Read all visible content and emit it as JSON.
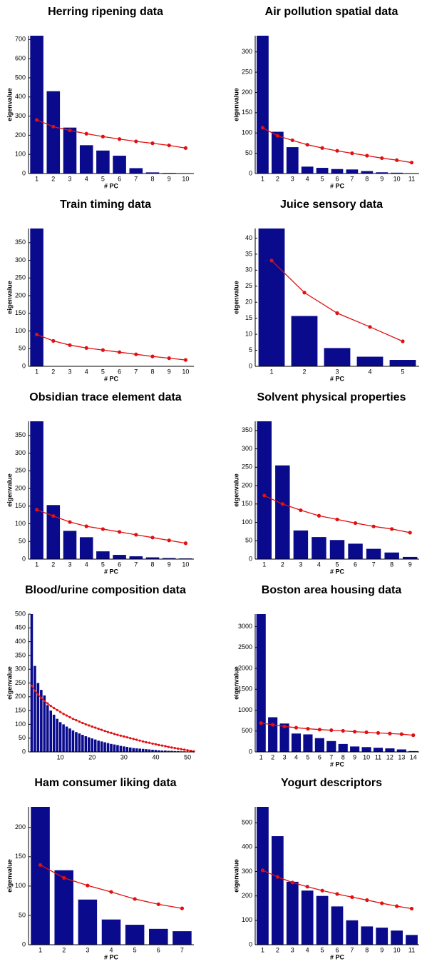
{
  "chart_data": [
    {
      "type": "bar",
      "title": "Herring ripening data",
      "xlabel": "# PC",
      "ylabel": "eigenvalue",
      "categories": [
        "1",
        "2",
        "3",
        "4",
        "5",
        "6",
        "7",
        "8",
        "9",
        "10"
      ],
      "series": [
        {
          "type": "bar",
          "color": "#0a0a8c",
          "values": [
            720,
            430,
            240,
            148,
            120,
            93,
            28,
            6,
            3,
            2
          ]
        },
        {
          "type": "line",
          "color": "#e01010",
          "values": [
            280,
            245,
            225,
            208,
            193,
            180,
            168,
            158,
            147,
            133
          ]
        }
      ],
      "ylim": [
        0,
        720
      ],
      "yticks": [
        0,
        100,
        200,
        300,
        400,
        500,
        600,
        700
      ]
    },
    {
      "type": "bar",
      "title": "Air pollution spatial data",
      "xlabel": "# PC",
      "ylabel": "eigenvalue",
      "categories": [
        "1",
        "2",
        "3",
        "4",
        "5",
        "6",
        "7",
        "8",
        "9",
        "10",
        "11"
      ],
      "series": [
        {
          "type": "bar",
          "color": "#0a0a8c",
          "values": [
            340,
            103,
            65,
            17,
            14,
            11,
            10,
            6,
            3,
            2,
            1
          ]
        },
        {
          "type": "line",
          "color": "#e01010",
          "values": [
            113,
            93,
            82,
            71,
            63,
            56,
            50,
            44,
            38,
            33,
            27
          ]
        }
      ],
      "ylim": [
        0,
        340
      ],
      "yticks": [
        0,
        50,
        100,
        150,
        200,
        250,
        300
      ]
    },
    {
      "type": "bar",
      "title": "Train timing data",
      "xlabel": "# PC",
      "ylabel": "eigenvalue",
      "categories": [
        "1",
        "2",
        "3",
        "4",
        "5",
        "6",
        "7",
        "8",
        "9",
        "10"
      ],
      "series": [
        {
          "type": "bar",
          "color": "#0a0a8c",
          "values": [
            390,
            0,
            0,
            0,
            0,
            0,
            0,
            0,
            0,
            0
          ]
        },
        {
          "type": "line",
          "color": "#e01010",
          "values": [
            90,
            72,
            60,
            52,
            46,
            40,
            34,
            28,
            23,
            18
          ]
        }
      ],
      "ylim": [
        0,
        390
      ],
      "yticks": [
        0,
        50,
        100,
        150,
        200,
        250,
        300,
        350
      ]
    },
    {
      "type": "bar",
      "title": "Juice sensory data",
      "xlabel": "# PC",
      "ylabel": "eigenvalue",
      "categories": [
        "1",
        "2",
        "3",
        "4",
        "5"
      ],
      "series": [
        {
          "type": "bar",
          "color": "#0a0a8c",
          "values": [
            43,
            15.7,
            5.7,
            3,
            2
          ]
        },
        {
          "type": "line",
          "color": "#e01010",
          "values": [
            33,
            23,
            16.6,
            12.3,
            7.8
          ]
        }
      ],
      "ylim": [
        0,
        43
      ],
      "yticks": [
        0,
        5,
        10,
        15,
        20,
        25,
        30,
        35,
        40
      ]
    },
    {
      "type": "bar",
      "title": "Obsidian trace element data",
      "xlabel": "# PC",
      "ylabel": "eigenvalue",
      "categories": [
        "1",
        "2",
        "3",
        "4",
        "5",
        "6",
        "7",
        "8",
        "9",
        "10"
      ],
      "series": [
        {
          "type": "bar",
          "color": "#0a0a8c",
          "values": [
            390,
            153,
            80,
            62,
            22,
            12,
            8,
            5,
            3,
            2
          ]
        },
        {
          "type": "line",
          "color": "#e01010",
          "values": [
            140,
            122,
            105,
            93,
            85,
            77,
            69,
            61,
            53,
            45
          ]
        }
      ],
      "ylim": [
        0,
        390
      ],
      "yticks": [
        0,
        50,
        100,
        150,
        200,
        250,
        300,
        350
      ]
    },
    {
      "type": "bar",
      "title": "Solvent physical properties",
      "xlabel": "# PC",
      "ylabel": "eigenvalue",
      "categories": [
        "1",
        "2",
        "3",
        "4",
        "5",
        "6",
        "7",
        "8",
        "9"
      ],
      "series": [
        {
          "type": "bar",
          "color": "#0a0a8c",
          "values": [
            375,
            255,
            78,
            60,
            52,
            42,
            28,
            18,
            6
          ]
        },
        {
          "type": "line",
          "color": "#e01010",
          "values": [
            173,
            150,
            133,
            118,
            108,
            98,
            89,
            82,
            72
          ]
        }
      ],
      "ylim": [
        0,
        375
      ],
      "yticks": [
        0,
        50,
        100,
        150,
        200,
        250,
        300,
        350
      ]
    },
    {
      "type": "bar",
      "title": "Blood/urine composition data",
      "ylabel": "eigenvalue",
      "x": [
        1,
        2,
        3,
        4,
        5,
        6,
        7,
        8,
        9,
        10,
        11,
        12,
        13,
        14,
        15,
        16,
        17,
        18,
        19,
        20,
        21,
        22,
        23,
        24,
        25,
        26,
        27,
        28,
        29,
        30,
        31,
        32,
        33,
        34,
        35,
        36,
        37,
        38,
        39,
        40,
        41,
        42,
        43,
        44,
        45,
        46,
        47,
        48,
        49,
        50,
        51,
        52
      ],
      "series": [
        {
          "type": "bar",
          "color": "#0a0a8c",
          "values": [
            500,
            312,
            250,
            225,
            205,
            170,
            150,
            135,
            120,
            108,
            100,
            92,
            85,
            78,
            72,
            67,
            62,
            57,
            53,
            49,
            45,
            41,
            38,
            35,
            32,
            29,
            27,
            25,
            22,
            20,
            18,
            16,
            14,
            13,
            12,
            11,
            10,
            9,
            8,
            7,
            6,
            5,
            5,
            4,
            4,
            3,
            3,
            2,
            2,
            1,
            1,
            1
          ]
        },
        {
          "type": "line",
          "color": "#e01010",
          "values": [
            240,
            222,
            208,
            196,
            185,
            176,
            167,
            159,
            152,
            145,
            138,
            132,
            126,
            120,
            115,
            110,
            105,
            100,
            96,
            92,
            88,
            84,
            80,
            76,
            72,
            69,
            65,
            62,
            59,
            56,
            53,
            50,
            47,
            44,
            41,
            38,
            35,
            33,
            30,
            28,
            25,
            23,
            21,
            18,
            16,
            14,
            12,
            10,
            8,
            6,
            4,
            2
          ]
        }
      ],
      "xlim": [
        0,
        52
      ],
      "xticks": [
        10,
        20,
        30,
        40,
        50
      ],
      "ylim": [
        0,
        500
      ],
      "yticks": [
        0,
        50,
        100,
        150,
        200,
        250,
        300,
        350,
        400,
        450,
        500
      ]
    },
    {
      "type": "bar",
      "title": "Boston area housing data",
      "xlabel": "# PC",
      "ylabel": "eigenvalue",
      "categories": [
        "1",
        "2",
        "3",
        "4",
        "5",
        "6",
        "7",
        "8",
        "9",
        "10",
        "11",
        "12",
        "13",
        "14"
      ],
      "series": [
        {
          "type": "bar",
          "color": "#0a0a8c",
          "values": [
            3300,
            830,
            680,
            440,
            420,
            330,
            260,
            190,
            130,
            115,
            100,
            85,
            60,
            20
          ]
        },
        {
          "type": "line",
          "color": "#e01010",
          "values": [
            690,
            650,
            610,
            580,
            555,
            535,
            520,
            505,
            485,
            470,
            455,
            440,
            425,
            400
          ]
        }
      ],
      "ylim": [
        0,
        3300
      ],
      "yticks": [
        0,
        500,
        1000,
        1500,
        2000,
        2500,
        3000
      ]
    },
    {
      "type": "bar",
      "title": "Ham consumer liking data",
      "xlabel": "# PC",
      "ylabel": "eigenvalue",
      "categories": [
        "1",
        "2",
        "3",
        "4",
        "5",
        "6",
        "7"
      ],
      "series": [
        {
          "type": "bar",
          "color": "#0a0a8c",
          "values": [
            235,
            127,
            77,
            43,
            34,
            27,
            23
          ]
        },
        {
          "type": "line",
          "color": "#e01010",
          "values": [
            136,
            114,
            101,
            90,
            78,
            69,
            62
          ]
        }
      ],
      "ylim": [
        0,
        235
      ],
      "yticks": [
        0,
        50,
        100,
        150,
        200
      ]
    },
    {
      "type": "bar",
      "title": "Yogurt descriptors",
      "xlabel": "# PC",
      "ylabel": "eigenvalue",
      "categories": [
        "1",
        "2",
        "3",
        "4",
        "5",
        "6",
        "7",
        "8",
        "9",
        "10",
        "11"
      ],
      "series": [
        {
          "type": "bar",
          "color": "#0a0a8c",
          "values": [
            565,
            445,
            258,
            222,
            200,
            157,
            100,
            75,
            70,
            58,
            40
          ]
        },
        {
          "type": "line",
          "color": "#e01010",
          "values": [
            305,
            278,
            255,
            238,
            222,
            208,
            195,
            183,
            170,
            158,
            148
          ]
        }
      ],
      "ylim": [
        0,
        565
      ],
      "yticks": [
        0,
        100,
        200,
        300,
        400,
        500
      ]
    }
  ]
}
